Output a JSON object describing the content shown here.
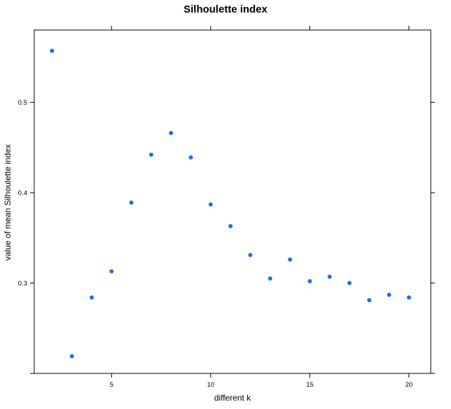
{
  "chart_data": {
    "type": "scatter",
    "title": "Silhoulette index",
    "xlabel": "different k",
    "ylabel": "value of mean Silhoulette index",
    "xlim": [
      1.1,
      21.1
    ],
    "ylim": [
      0.2,
      0.58
    ],
    "x_ticks": [
      5,
      10,
      15,
      20
    ],
    "x_tick_labels": [
      "5",
      "10",
      "15",
      "20"
    ],
    "y_ticks": [
      0.2,
      0.3,
      0.4,
      0.5
    ],
    "y_tick_labels": [
      "",
      "0.3",
      "0.4",
      "0.5"
    ],
    "point_color": "#1f6ef0",
    "grid": false,
    "x": [
      2,
      3,
      4,
      5,
      6,
      7,
      8,
      9,
      10,
      11,
      12,
      13,
      14,
      15,
      16,
      17,
      18,
      19,
      20
    ],
    "y": [
      0.557,
      0.219,
      0.284,
      0.313,
      0.389,
      0.442,
      0.466,
      0.439,
      0.387,
      0.363,
      0.331,
      0.305,
      0.326,
      0.302,
      0.307,
      0.3,
      0.281,
      0.287,
      0.284
    ]
  }
}
